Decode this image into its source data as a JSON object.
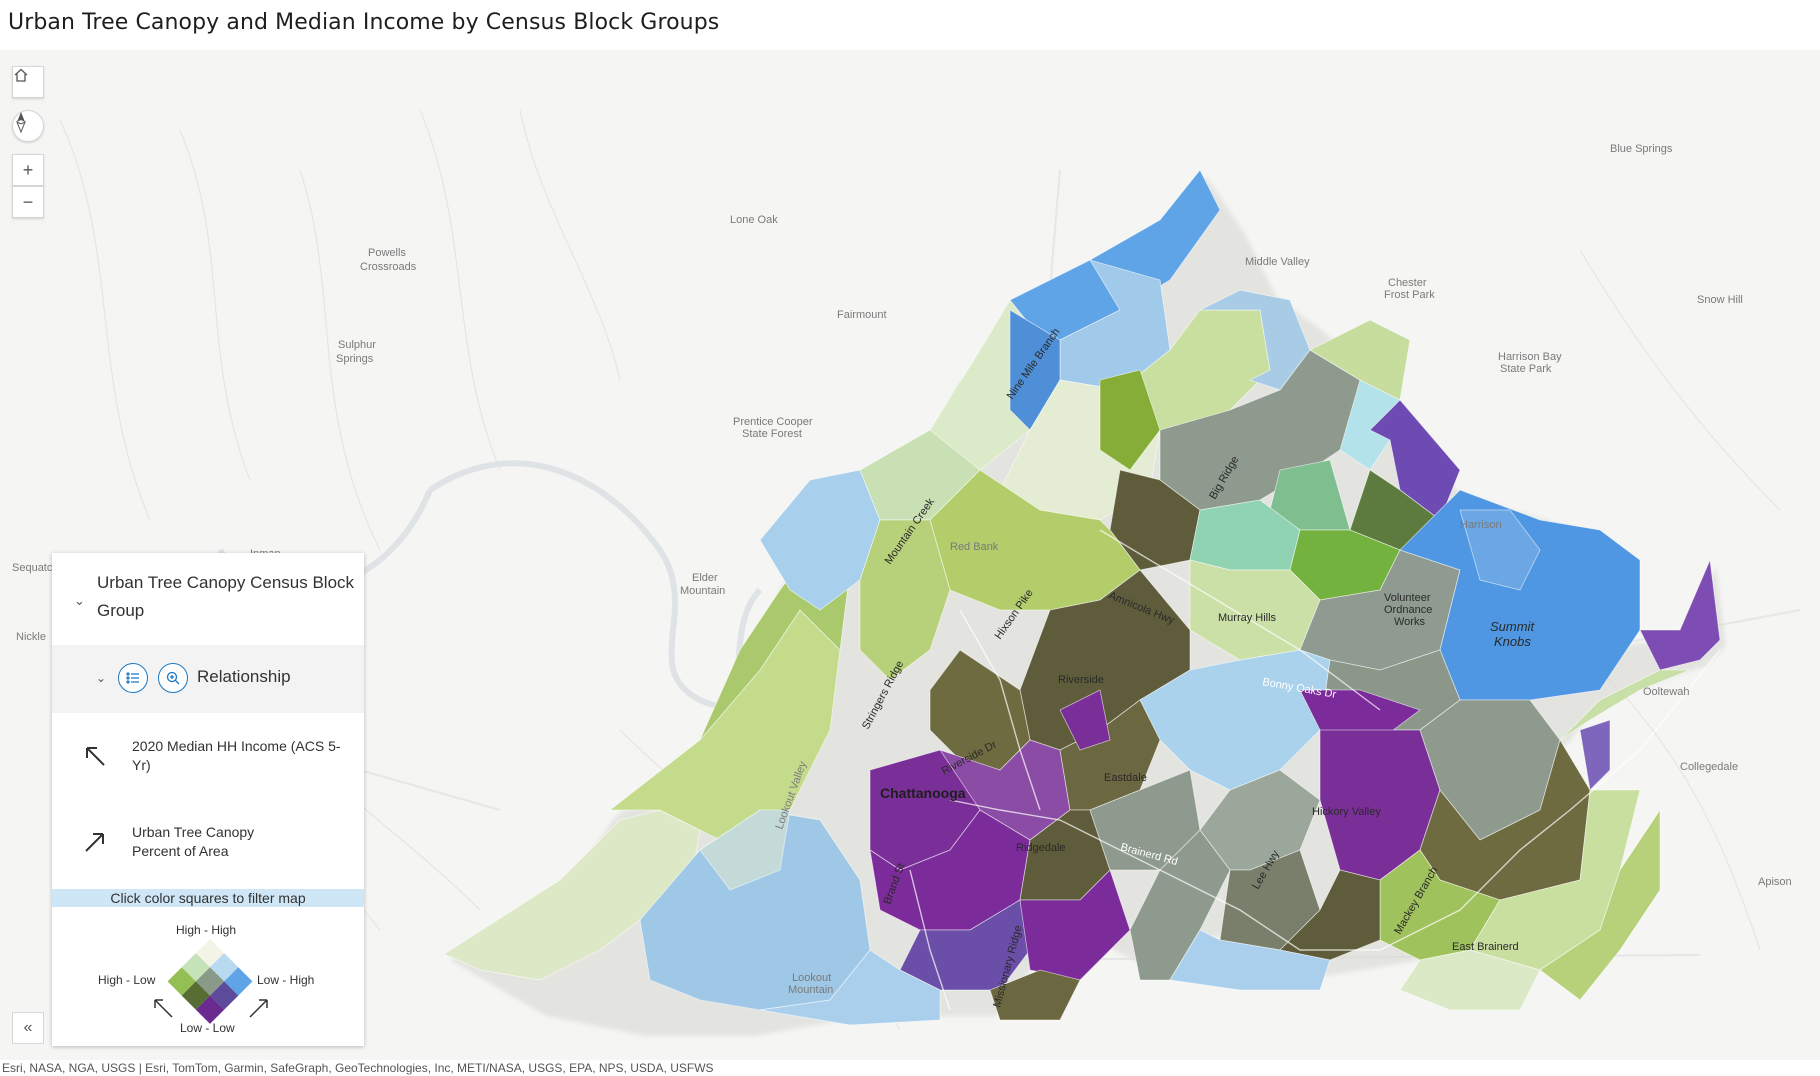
{
  "app": {
    "title": "Urban Tree Canopy and Median Income by Census Block Groups"
  },
  "map_labels": [
    "Blue Springs",
    "Lone Oak",
    "Powells",
    "Crossroads",
    "Middle Valley",
    "Chester",
    "Frost Park",
    "Snow Hill",
    "Sulphur",
    "Springs",
    "Fairmount",
    "Harrison Bay",
    "State Park",
    "Prentice Cooper",
    "State Forest",
    "Red Bank",
    "Harrison",
    "Inman",
    "Elder",
    "Mountain",
    "Sequatchie",
    "Nickle",
    "Volunteer",
    "Ordnance",
    "Works",
    "Summit",
    "Knobs",
    "Murray Hills",
    "Riverside",
    "Ooltewah",
    "Chattanooga",
    "Eastdale",
    "Collegedale",
    "Ridgedale",
    "Hickory Valley",
    "Apison",
    "Lookout",
    "Mountain",
    "East Brainerd"
  ],
  "road_labels": [
    "Big Ridge",
    "Amnicola Hwy",
    "Hixson Pike",
    "Stringers Ridge",
    "Riverside Dr",
    "Lookout Valley",
    "Brainerd Rd",
    "Lee Hwy",
    "Brand St",
    "Missionary Ridge",
    "Mountain Creek",
    "Nine Mile Branch",
    "Bonny Oaks Dr",
    "Mackey Branch"
  ],
  "controls": {
    "home": "home-icon",
    "compass": "compass-icon",
    "zoom_in": "+",
    "zoom_out": "−",
    "collapse": "«"
  },
  "legend": {
    "layer_title": "Urban Tree Canopy Census Block Group",
    "renderer_label": "Relationship",
    "field1": "2020 Median HH Income (ACS 5-Yr)",
    "field2": "Urban Tree Canopy Percent of Area",
    "hint": "Click color squares to filter map",
    "corner_high_high": "High - High",
    "corner_high_low": "High - Low",
    "corner_low_high": "Low - High",
    "corner_low_low": "Low - Low",
    "grid_colors": [
      "#f3f3e8",
      "#c5e3b8",
      "#94bf54",
      "#b9d9f0",
      "#8a9a89",
      "#576d33",
      "#5fa4e6",
      "#5c4a9a",
      "#6b2a8f"
    ]
  },
  "attribution": "Esri, NASA, NGA, USGS | Esri, TomTom, Garmin, SafeGraph, GeoTechnologies, Inc, METI/NASA, USGS, EPA, NPS, USDA, USFWS"
}
